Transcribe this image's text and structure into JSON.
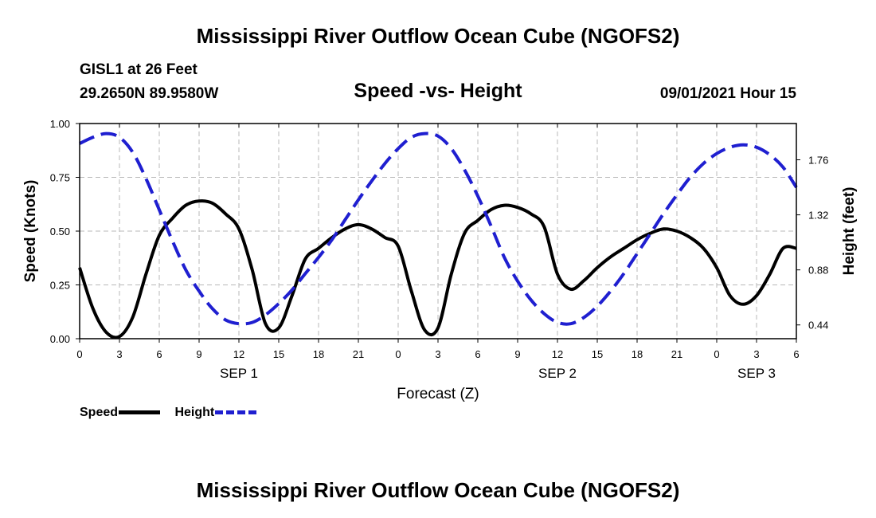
{
  "header": {
    "title": "Mississippi River Outflow Ocean Cube (NGOFS2)",
    "station": "GISL1 at 26 Feet",
    "coords": "29.2650N  89.9580W",
    "subtitle": "Speed -vs- Height",
    "datetime": "09/01/2021 Hour 15"
  },
  "footer": {
    "title": "Mississippi River Outflow Ocean Cube (NGOFS2)"
  },
  "legend": {
    "speed_label": "Speed",
    "height_label": "Height"
  },
  "chart_data": {
    "type": "line",
    "title": "Speed -vs- Height",
    "xlabel": "Forecast (Z)",
    "ylabel_left": "Speed (Knots)",
    "ylabel_right": "Height (feet)",
    "xlim": [
      0,
      54
    ],
    "ylim_left": [
      0,
      1
    ],
    "ylim_right": [
      0.33,
      2.05
    ],
    "x_ticks": [
      0,
      3,
      6,
      9,
      12,
      15,
      18,
      21,
      24,
      27,
      30,
      33,
      36,
      39,
      42,
      45,
      48,
      51,
      54
    ],
    "x_tick_labels": [
      "0",
      "3",
      "6",
      "9",
      "12",
      "15",
      "18",
      "21",
      "0",
      "3",
      "6",
      "9",
      "12",
      "15",
      "18",
      "21",
      "0",
      "3",
      "6"
    ],
    "date_labels": [
      {
        "x": 12,
        "label": "SEP 1"
      },
      {
        "x": 36,
        "label": "SEP 2"
      },
      {
        "x": 51,
        "label": "SEP 3"
      }
    ],
    "y_left_ticks": [
      0,
      0.25,
      0.5,
      0.75,
      1.0
    ],
    "y_left_tick_labels": [
      "0.00",
      "0.25",
      "0.50",
      "0.75",
      "1.00"
    ],
    "y_right_ticks": [
      0.44,
      0.88,
      1.32,
      1.76
    ],
    "y_right_tick_labels": [
      "0.44",
      "0.88",
      "1.32",
      "1.76"
    ],
    "grid": true,
    "legend_position": "bottom-left",
    "series": [
      {
        "name": "Speed",
        "axis": "left",
        "color": "#000000",
        "dash": "solid",
        "x": [
          0,
          1,
          2,
          3,
          4,
          5,
          6,
          7,
          8,
          9,
          10,
          11,
          12,
          13,
          14,
          15,
          16,
          17,
          18,
          19,
          20,
          21,
          22,
          23,
          24,
          25,
          26,
          27,
          28,
          29,
          30,
          31,
          32,
          33,
          34,
          35,
          36,
          37,
          38,
          39,
          40,
          41,
          42,
          43,
          44,
          45,
          46,
          47,
          48,
          49,
          50,
          51,
          52,
          53,
          54
        ],
        "y": [
          0.33,
          0.14,
          0.03,
          0.01,
          0.1,
          0.3,
          0.48,
          0.56,
          0.62,
          0.64,
          0.63,
          0.58,
          0.51,
          0.32,
          0.07,
          0.05,
          0.2,
          0.37,
          0.42,
          0.47,
          0.51,
          0.53,
          0.51,
          0.47,
          0.43,
          0.22,
          0.04,
          0.05,
          0.3,
          0.49,
          0.55,
          0.6,
          0.62,
          0.61,
          0.58,
          0.52,
          0.3,
          0.23,
          0.27,
          0.33,
          0.38,
          0.42,
          0.46,
          0.49,
          0.51,
          0.5,
          0.47,
          0.42,
          0.33,
          0.2,
          0.16,
          0.2,
          0.3,
          0.42,
          0.42
        ]
      },
      {
        "name": "Height",
        "axis": "right",
        "color": "#1f1fd0",
        "dash": "dashed",
        "x": [
          0,
          1,
          2,
          3,
          4,
          5,
          6,
          7,
          8,
          9,
          10,
          11,
          12,
          13,
          14,
          15,
          16,
          17,
          18,
          19,
          20,
          21,
          22,
          23,
          24,
          25,
          26,
          27,
          28,
          29,
          30,
          31,
          32,
          33,
          34,
          35,
          36,
          37,
          38,
          39,
          40,
          41,
          42,
          43,
          44,
          45,
          46,
          47,
          48,
          49,
          50,
          51,
          52,
          53,
          54
        ],
        "y": [
          1.89,
          1.94,
          1.97,
          1.94,
          1.82,
          1.61,
          1.36,
          1.11,
          0.88,
          0.71,
          0.57,
          0.48,
          0.45,
          0.46,
          0.52,
          0.61,
          0.72,
          0.85,
          0.98,
          1.12,
          1.28,
          1.44,
          1.59,
          1.73,
          1.85,
          1.94,
          1.97,
          1.95,
          1.85,
          1.68,
          1.47,
          1.23,
          0.98,
          0.79,
          0.64,
          0.53,
          0.46,
          0.45,
          0.5,
          0.59,
          0.71,
          0.85,
          1.01,
          1.17,
          1.33,
          1.48,
          1.62,
          1.73,
          1.81,
          1.86,
          1.88,
          1.86,
          1.8,
          1.7,
          1.54
        ]
      }
    ]
  }
}
